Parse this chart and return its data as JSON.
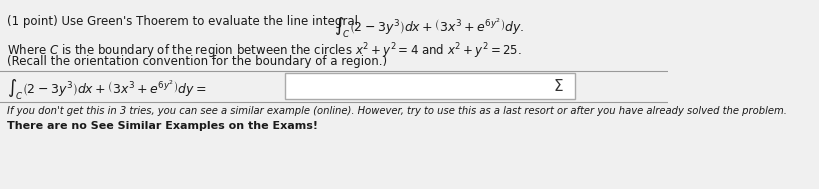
{
  "bg_color": "#f0f0f0",
  "line1": "(1 point) Use Green's Thoerem to evaluate the line integral",
  "integral_top": "$\\int_C \\left(2-3y^3\\right)dx + \\left(3x^3+e^{6y^2}\\right)dy.$",
  "line2": "Where $C$ is the boundary of the region between the circles $x^2+y^2=4$ and $x^2+y^2=25.$",
  "line3": "(Recall the orientation convention for the boundary of a region.)",
  "integral_bottom": "$\\int_C \\left(2-3y^3\\right)dx + \\left(3x^3+e^{6y^2}\\right)dy=$",
  "last_line1": "If you don't get this in 3 tries, you can see a similar example (online). However, try to use this as a last resort or after you have already solved the problem.",
  "last_line2": "There are no See Similar Examples on the Exams!",
  "text_color": "#1a1a1a",
  "box_fill": "#ffffff",
  "box_edge": "#aaaaaa",
  "sigma_color": "#333333"
}
